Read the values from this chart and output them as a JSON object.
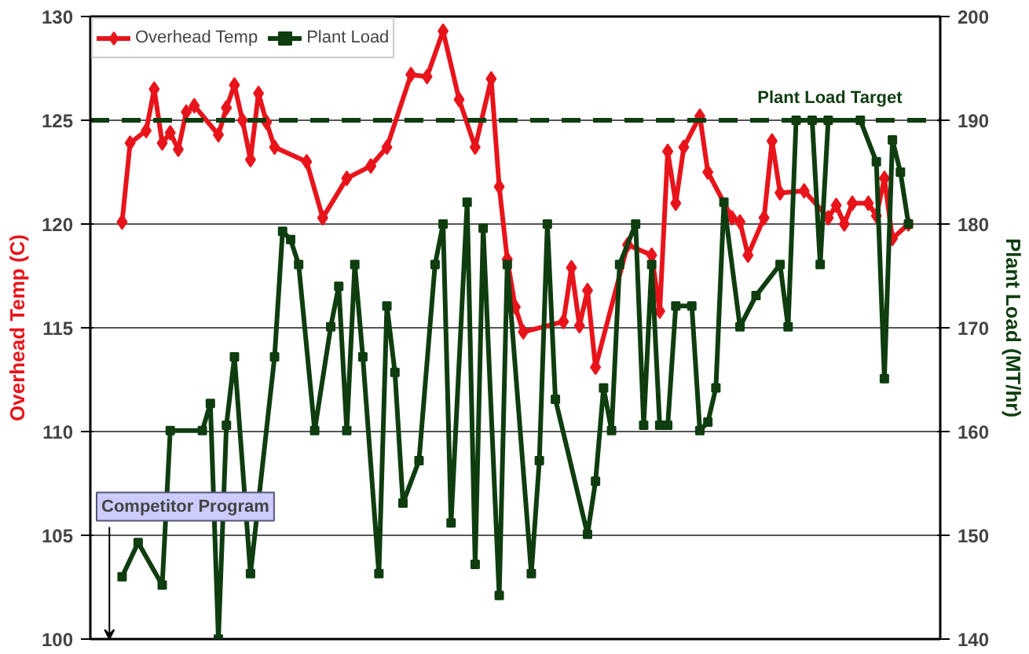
{
  "chart_data": {
    "type": "line",
    "ylabel": "Overhead Temp (C)",
    "y2label": "Plant Load (MT/hr)",
    "categories": [
      null,
      null,
      null,
      null,
      null,
      null,
      null,
      null,
      null,
      null,
      null,
      null,
      null,
      null,
      null,
      null,
      null,
      null,
      null,
      null,
      null,
      null,
      null,
      null,
      null,
      null,
      null,
      null,
      null,
      null,
      null,
      null,
      null,
      null,
      null,
      null,
      null,
      null,
      null,
      null,
      null,
      null,
      null,
      null,
      null,
      null,
      null,
      null,
      null,
      null,
      null,
      null,
      null,
      null,
      null,
      null,
      null,
      null,
      null,
      null,
      null,
      null,
      null,
      null,
      null,
      null,
      null,
      null,
      null,
      null,
      null,
      null,
      null,
      null,
      null,
      null,
      null,
      null,
      null,
      null,
      null,
      null,
      null,
      null,
      null,
      null,
      null,
      null,
      null,
      null,
      null,
      null,
      null,
      null,
      null,
      null,
      null,
      null,
      null
    ],
    "ylim": [
      100,
      130
    ],
    "yticks": [
      100,
      105,
      110,
      115,
      120,
      125,
      130
    ],
    "y2lim": [
      140,
      200
    ],
    "y2ticks": [
      140,
      150,
      160,
      170,
      180,
      190,
      200
    ],
    "tick_labels": "y",
    "grid": "y",
    "legend": "top left",
    "line_style": "solid",
    "series": [
      {
        "name": "Overhead Temp",
        "color": "#e8141b",
        "marker": "diamond",
        "values": [
          120.1,
          123.9,
          null,
          124.5,
          126.5,
          123.9,
          124.4,
          123.6,
          125.4,
          125.7,
          null,
          null,
          124.3,
          125.6,
          126.7,
          125.0,
          123.1,
          126.3,
          124.9,
          123.7,
          null,
          null,
          null,
          123.0,
          null,
          120.3,
          null,
          null,
          122.2,
          null,
          null,
          122.8,
          null,
          123.7,
          null,
          null,
          127.2,
          null,
          127.1,
          null,
          129.3,
          null,
          126.0,
          null,
          123.7,
          null,
          127.0,
          121.8,
          118.3,
          116.0,
          114.8,
          null,
          null,
          null,
          null,
          115.3,
          117.9,
          115.1,
          116.8,
          113.1,
          null,
          null,
          null,
          119.0,
          null,
          null,
          118.5,
          115.8,
          123.5,
          121.0,
          123.7,
          null,
          125.2,
          122.5,
          null,
          null,
          120.3,
          120.1,
          118.5,
          null,
          120.3,
          124.0,
          121.5,
          null,
          null,
          121.6,
          null,
          null,
          120.3,
          120.9,
          120.0,
          121.0,
          null,
          121.0,
          120.4,
          122.2,
          119.3,
          null,
          120.0
        ]
      },
      {
        "name": "Plant Load",
        "color": "#0f3d10",
        "marker": "square",
        "axis": "y2",
        "values": [
          146.0,
          null,
          149.3,
          null,
          null,
          145.2,
          160.1,
          null,
          null,
          null,
          160.1,
          162.7,
          140.0,
          160.6,
          167.2,
          null,
          146.3,
          null,
          null,
          167.2,
          179.3,
          178.5,
          176.1,
          null,
          160.1,
          null,
          170.1,
          174.0,
          160.1,
          176.1,
          167.2,
          null,
          146.3,
          172.1,
          165.7,
          153.1,
          null,
          157.2,
          null,
          176.1,
          180.0,
          151.2,
          null,
          182.1,
          147.2,
          179.6,
          null,
          144.2,
          176.1,
          null,
          null,
          146.3,
          157.2,
          180.0,
          163.1,
          null,
          null,
          null,
          150.1,
          155.2,
          164.2,
          160.1,
          176.1,
          null,
          180.0,
          160.6,
          176.1,
          160.6,
          160.6,
          172.1,
          null,
          172.1,
          160.1,
          160.9,
          164.2,
          182.1,
          null,
          170.1,
          null,
          173.1,
          null,
          null,
          176.1,
          170.1,
          190.0,
          null,
          190.0,
          176.1,
          190.0,
          null,
          null,
          null,
          190.0,
          null,
          186.0,
          165.1,
          188.1,
          185.0,
          180.0
        ]
      }
    ],
    "ref_lines": [
      {
        "axis": "y2",
        "value": 190,
        "label": "Plant Load Target",
        "color": "#0f3d10",
        "line_style": "dashed"
      }
    ],
    "annotations": [
      "Competitor Program"
    ]
  }
}
